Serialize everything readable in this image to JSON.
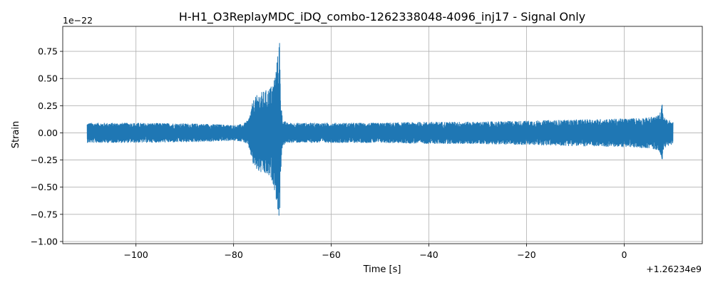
{
  "chart_data": {
    "type": "line",
    "title": "H-H1_O3ReplayMDC_iDQ_combo-1262338048-4096_inj17 - Signal Only",
    "xlabel": "Time [s]",
    "ylabel": "Strain",
    "x_offset_label": "+1.26234e9",
    "y_scale_label": "1e−22",
    "xlim": [
      -115,
      16
    ],
    "ylim": [
      -1.02,
      0.98
    ],
    "x_ticks": [
      -100,
      -80,
      -60,
      -40,
      -20,
      0
    ],
    "x_tick_labels": [
      "−100",
      "−80",
      "−60",
      "−40",
      "−20",
      "0"
    ],
    "y_ticks": [
      -1.0,
      -0.75,
      -0.5,
      -0.25,
      0.0,
      0.25,
      0.5,
      0.75
    ],
    "y_tick_labels": [
      "−1.00",
      "−0.75",
      "−0.50",
      "−0.25",
      "0.00",
      "0.25",
      "0.50",
      "0.75"
    ],
    "grid": true,
    "series": [
      {
        "color": "#1f77b4",
        "x_range": [
          -110,
          10
        ],
        "envelope": {
          "x": [
            -110,
            -100,
            -90,
            -85,
            -80,
            -78,
            -77,
            -76.5,
            -76,
            -75,
            -74,
            -73,
            -72,
            -71.5,
            -71,
            -70.6,
            -70.4,
            -70,
            -69,
            -65,
            -60,
            -50,
            -40,
            -30,
            -20,
            -10,
            0,
            5,
            7,
            7.5,
            7.8,
            8,
            8.2,
            9,
            10
          ],
          "amplitude": [
            0.09,
            0.09,
            0.085,
            0.08,
            0.07,
            0.08,
            0.12,
            0.2,
            0.3,
            0.36,
            0.38,
            0.4,
            0.45,
            0.55,
            0.7,
            0.9,
            0.4,
            0.12,
            0.09,
            0.09,
            0.09,
            0.09,
            0.1,
            0.1,
            0.11,
            0.12,
            0.13,
            0.14,
            0.16,
            0.2,
            0.28,
            0.18,
            0.14,
            0.12,
            0.1
          ]
        }
      }
    ]
  }
}
